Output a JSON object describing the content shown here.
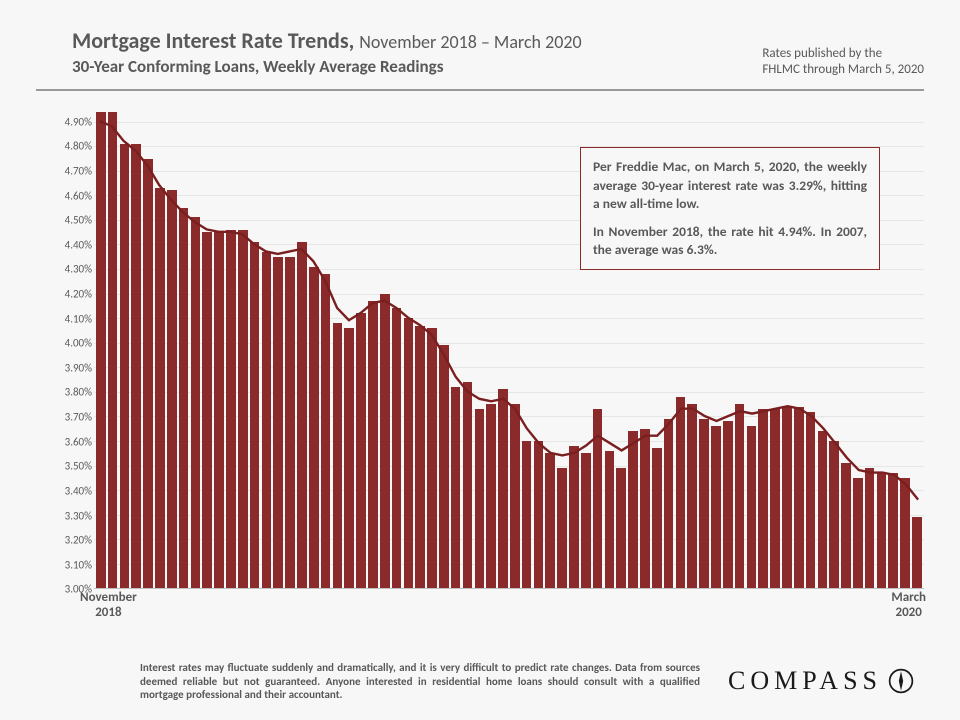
{
  "header": {
    "title_main": "Mortgage Interest Rate Trends,",
    "title_suffix": "November 2018 – March 2020",
    "subtitle": "30-Year Conforming Loans, Weekly Average Readings",
    "source_line1": "Rates published by the",
    "source_line2": "FHLMC through March 5, 2020"
  },
  "chart": {
    "type": "bar+line",
    "y_min": 3.0,
    "y_max": 4.95,
    "y_tick_step": 0.1,
    "y_tick_format_suffix": "%",
    "bar_color": "#8b2a2a",
    "line_color": "#7a1f1f",
    "line_width": 2.4,
    "grid_color": "#e6e6e6",
    "background": "#f7f7f7",
    "x_start_label": "November\n2018",
    "x_end_label": "March\n2020",
    "values": [
      4.94,
      4.94,
      4.81,
      4.81,
      4.75,
      4.63,
      4.62,
      4.55,
      4.51,
      4.45,
      4.45,
      4.46,
      4.46,
      4.41,
      4.37,
      4.35,
      4.35,
      4.41,
      4.31,
      4.28,
      4.08,
      4.06,
      4.12,
      4.17,
      4.2,
      4.14,
      4.1,
      4.07,
      4.06,
      3.99,
      3.82,
      3.84,
      3.73,
      3.75,
      3.81,
      3.75,
      3.6,
      3.6,
      3.55,
      3.49,
      3.58,
      3.55,
      3.73,
      3.56,
      3.49,
      3.64,
      3.65,
      3.57,
      3.69,
      3.78,
      3.75,
      3.69,
      3.66,
      3.68,
      3.75,
      3.66,
      3.73,
      3.73,
      3.74,
      3.74,
      3.72,
      3.64,
      3.6,
      3.51,
      3.45,
      3.49,
      3.47,
      3.47,
      3.45,
      3.29
    ],
    "line_values": [
      4.9,
      4.88,
      4.82,
      4.78,
      4.72,
      4.64,
      4.58,
      4.53,
      4.49,
      4.46,
      4.45,
      4.45,
      4.44,
      4.4,
      4.37,
      4.36,
      4.37,
      4.38,
      4.33,
      4.25,
      4.14,
      4.09,
      4.12,
      4.16,
      4.17,
      4.14,
      4.1,
      4.07,
      4.03,
      3.95,
      3.86,
      3.8,
      3.77,
      3.76,
      3.77,
      3.73,
      3.65,
      3.59,
      3.55,
      3.54,
      3.55,
      3.58,
      3.62,
      3.59,
      3.56,
      3.59,
      3.62,
      3.62,
      3.67,
      3.73,
      3.73,
      3.7,
      3.68,
      3.7,
      3.72,
      3.71,
      3.72,
      3.73,
      3.74,
      3.73,
      3.7,
      3.65,
      3.59,
      3.53,
      3.48,
      3.47,
      3.47,
      3.46,
      3.42,
      3.36
    ]
  },
  "callout": {
    "p1": "Per Freddie Mac, on March 5, 2020, the weekly average 30-year interest rate was 3.29%, hitting a new all-time low.",
    "p2": "In November 2018, the rate hit 4.94%. In 2007, the average was 6.3%."
  },
  "footer": {
    "disclaimer": "Interest rates may fluctuate suddenly and dramatically, and it is very difficult to predict rate changes. Data from sources deemed reliable but not guaranteed. Anyone interested in residential home loans should consult with a qualified mortgage professional and their accountant.",
    "logo_text": "COMPASS"
  },
  "style": {
    "text_color": "#595959",
    "title_fontsize": 22,
    "subtitle_fontsize": 17,
    "tick_fontsize": 11
  }
}
